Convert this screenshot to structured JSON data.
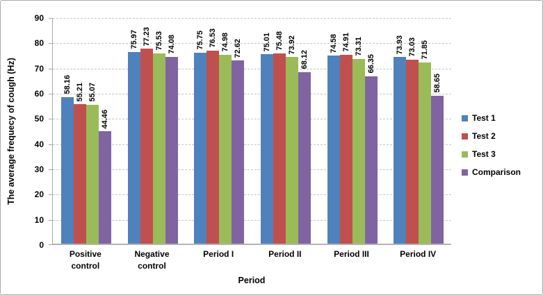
{
  "chart_data": {
    "type": "bar",
    "title": "",
    "xlabel": "Period",
    "ylabel": "The average frequecy of cough (Hz)",
    "ylim": [
      0,
      90
    ],
    "y_ticks": [
      0,
      10,
      20,
      30,
      40,
      50,
      60,
      70,
      80,
      90
    ],
    "grid": "horizontal-dashed",
    "legend_position": "right",
    "value_labels": "rotated-90-above-bars",
    "value_label_format": "2-decimals",
    "categories": [
      "Positive\ncontrol",
      "Negative\ncontrol",
      "Period I",
      "Period II",
      "Period III",
      "Period IV"
    ],
    "series": [
      {
        "name": "Test 1",
        "color": "#4F81BD",
        "values": [
          58.16,
          75.97,
          75.75,
          75.01,
          74.58,
          73.93
        ]
      },
      {
        "name": "Test 2",
        "color": "#C0504D",
        "values": [
          55.21,
          77.23,
          76.53,
          75.48,
          74.91,
          73.03
        ]
      },
      {
        "name": "Test 3",
        "color": "#9BBB59",
        "values": [
          55.07,
          75.53,
          74.98,
          73.92,
          73.31,
          71.85
        ]
      },
      {
        "name": "Comparison",
        "color": "#8064A2",
        "values": [
          44.46,
          74.08,
          72.62,
          68.12,
          66.35,
          58.65
        ]
      }
    ],
    "colors": {
      "axis_line": "#A6A6A6",
      "gridline": "#C6C6C6",
      "text": "#000000",
      "outer_border": "#ABABAB"
    }
  }
}
